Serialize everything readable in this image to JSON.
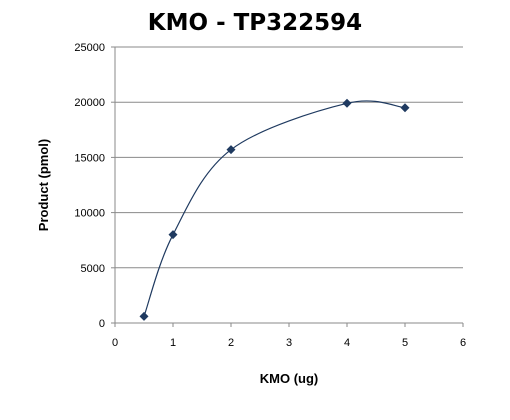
{
  "chart_data": {
    "type": "scatter",
    "title": "KMO - TP322594",
    "xlabel": "KMO (ug)",
    "ylabel": "Product (pmol)",
    "xlim": [
      0,
      6
    ],
    "ylim": [
      0,
      25000
    ],
    "x_ticks": [
      "0",
      "1",
      "2",
      "3",
      "4",
      "5",
      "6"
    ],
    "y_ticks": [
      "0",
      "5000",
      "10000",
      "15000",
      "20000",
      "25000"
    ],
    "grid": "horizontal",
    "legend": "none",
    "smoothed_line": true,
    "series": [
      {
        "x": [
          0.5,
          1,
          2,
          4,
          5
        ],
        "y": [
          600,
          8000,
          15700,
          19900,
          19500
        ],
        "color": "#1f3a60",
        "marker": "diamond"
      }
    ]
  }
}
